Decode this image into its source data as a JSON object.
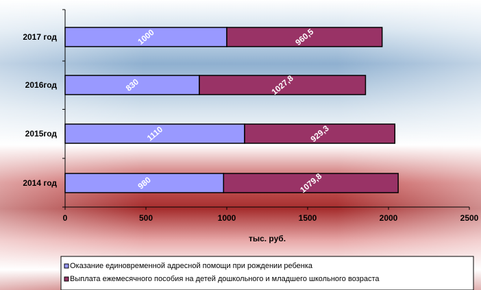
{
  "chart_data": {
    "type": "bar",
    "orientation": "horizontal",
    "stacked": true,
    "categories": [
      "2017 год",
      "2016год",
      "2015год",
      "2014 год"
    ],
    "series": [
      {
        "name": "Оказание единовременной адресной помощи при рождении ребенка",
        "values": [
          1000,
          830,
          1110,
          980
        ],
        "labels": [
          "1000",
          "830",
          "1110",
          "980"
        ],
        "color": "#9999ff"
      },
      {
        "name": "Выплата ежемесячного пособия на детей дошкольного и младшего школьного возраста",
        "values": [
          960.5,
          1027.8,
          929.3,
          1079.8
        ],
        "labels": [
          "960,5",
          "1027,8",
          "929,3",
          "1079,8"
        ],
        "color": "#993366"
      }
    ],
    "xlabel": "тыс. руб.",
    "xlim": [
      0,
      2500
    ],
    "xticks": [
      "0",
      "500",
      "1000",
      "1500",
      "2000",
      "2500"
    ],
    "legend_position": "bottom",
    "grid": false
  }
}
